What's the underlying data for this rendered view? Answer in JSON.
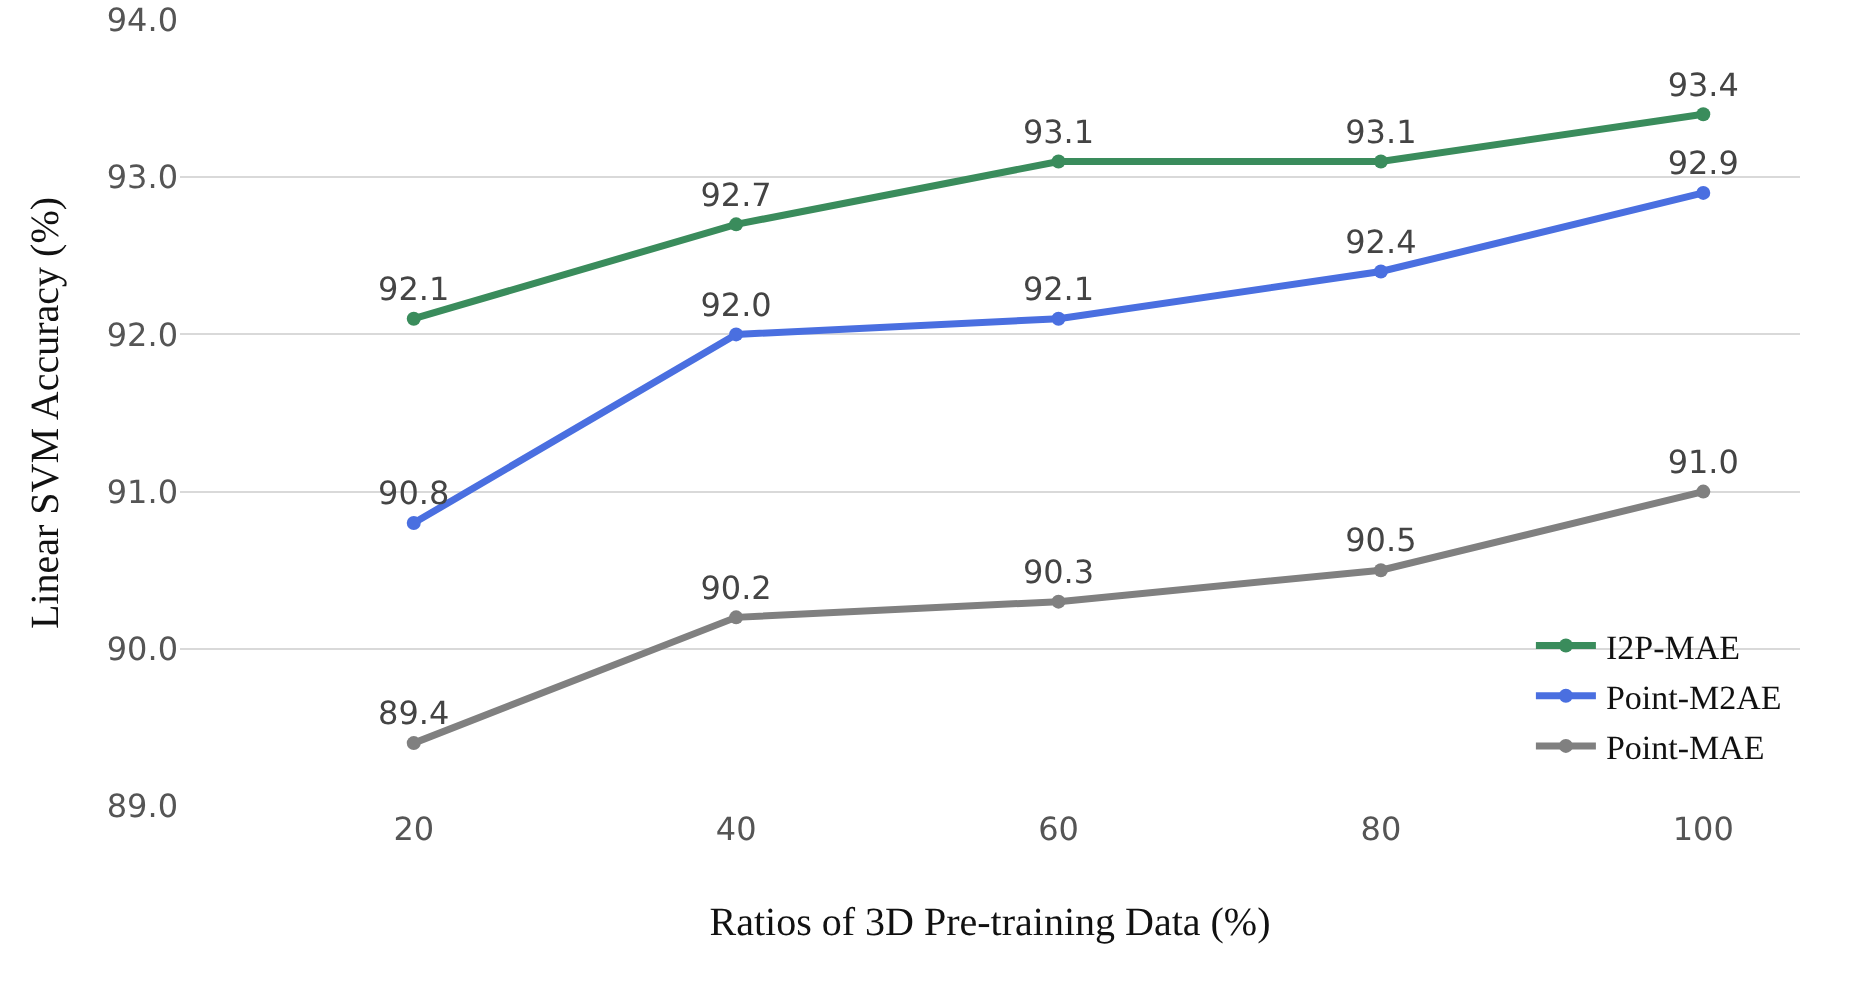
{
  "chart_data": {
    "type": "line",
    "xlabel": "Ratios of 3D Pre-training Data (%)",
    "ylabel": "Linear SVM Accuracy (%)",
    "x": [
      20,
      40,
      60,
      80,
      100
    ],
    "series": [
      {
        "name": "I2P-MAE",
        "color": "#3a8c5c",
        "values": [
          92.1,
          92.7,
          93.1,
          93.1,
          93.4
        ],
        "value_labels": [
          "92.1",
          "92.7",
          "93.1",
          "93.1",
          "93.4"
        ]
      },
      {
        "name": "Point-M2AE",
        "color": "#4a6fe0",
        "values": [
          90.8,
          92.0,
          92.1,
          92.4,
          92.9
        ],
        "value_labels": [
          "90.8",
          "92.0",
          "92.1",
          "92.4",
          "92.9"
        ]
      },
      {
        "name": "Point-MAE",
        "color": "#808080",
        "values": [
          89.4,
          90.2,
          90.3,
          90.5,
          91.0
        ],
        "value_labels": [
          "89.4",
          "90.2",
          "90.3",
          "90.5",
          "91.0"
        ]
      }
    ],
    "xlim": [
      5.5,
      106
    ],
    "xticks": [
      20,
      40,
      60,
      80,
      100
    ],
    "ylim": [
      89,
      94
    ],
    "yticks": [
      {
        "value": 89,
        "label": "89.0"
      },
      {
        "value": 90,
        "label": "90.0"
      },
      {
        "value": 91,
        "label": "91.0"
      },
      {
        "value": 92,
        "label": "92.0"
      },
      {
        "value": 93,
        "label": "93.0"
      },
      {
        "value": 94,
        "label": "94.0"
      }
    ],
    "grid": "y",
    "legend": "bottom right",
    "marker": "circle",
    "line_style": "solid"
  }
}
